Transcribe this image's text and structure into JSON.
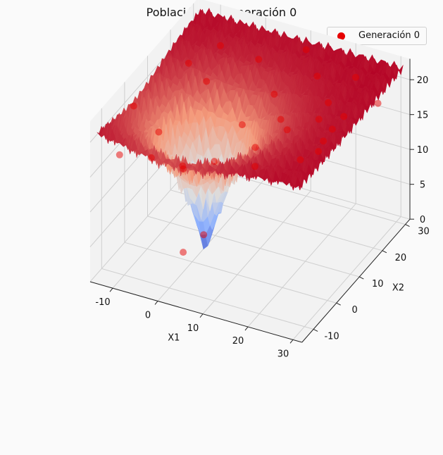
{
  "chart_data": {
    "type": "surface3d",
    "title": "Población en Generación 0",
    "xlabel": "X1",
    "ylabel": "X2",
    "zlabel": "",
    "xlim": [
      -15,
      32
    ],
    "ylim": [
      -15,
      32
    ],
    "zlim": [
      0,
      23
    ],
    "x_ticks": [
      "-10",
      "0",
      "10",
      "20",
      "30"
    ],
    "y_ticks": [
      "-10",
      "0",
      "10",
      "20",
      "30"
    ],
    "z_ticks": [
      "0",
      "5",
      "10",
      "15",
      "20"
    ],
    "surface_colormap": "coolwarm",
    "surface_min_z": 0,
    "surface_max_z": 22,
    "grid": true,
    "legend_position": "top-right",
    "series": [
      {
        "name": "Generación 0",
        "type": "scatter",
        "color": "#e60000",
        "points": [
          [
            27,
            8,
            21
          ],
          [
            22,
            12,
            20
          ],
          [
            -12,
            9,
            13
          ],
          [
            -3,
            2,
            12
          ],
          [
            18,
            6,
            20
          ],
          [
            25,
            -2,
            20
          ],
          [
            10,
            -10,
            20
          ],
          [
            4,
            -12,
            19
          ],
          [
            30,
            22,
            20
          ],
          [
            15,
            25,
            20
          ],
          [
            -8,
            28,
            19
          ],
          [
            8,
            20,
            18
          ],
          [
            -5,
            -8,
            17
          ],
          [
            -10,
            -12,
            18
          ],
          [
            12,
            15,
            17
          ],
          [
            0,
            5,
            2
          ],
          [
            -2,
            0,
            1
          ],
          [
            20,
            20,
            19
          ],
          [
            24,
            10,
            18
          ],
          [
            14,
            0,
            19
          ],
          [
            6,
            10,
            17
          ],
          [
            -12,
            22,
            18
          ],
          [
            2,
            25,
            20
          ],
          [
            28,
            0,
            21
          ],
          [
            -14,
            2,
            19
          ],
          [
            18,
            -8,
            20
          ],
          [
            22,
            28,
            20
          ],
          [
            -6,
            18,
            18
          ],
          [
            10,
            30,
            21
          ],
          [
            26,
            15,
            20
          ]
        ]
      }
    ]
  }
}
